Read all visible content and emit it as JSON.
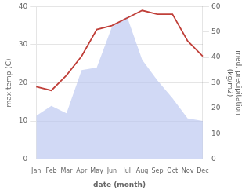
{
  "chart_data": {
    "type": "line",
    "categories": [
      "Jan",
      "Feb",
      "Mar",
      "Apr",
      "May",
      "Jun",
      "Jul",
      "Aug",
      "Sep",
      "Oct",
      "Nov",
      "Dec"
    ],
    "series": [
      {
        "type": "line",
        "color": "#c0403a",
        "values": [
          19,
          18,
          22,
          27,
          34,
          35,
          37,
          39,
          38,
          38,
          31,
          27
        ]
      },
      {
        "type": "area",
        "color": "#b8c4f0",
        "axis": "y2",
        "values": [
          17,
          21,
          18,
          35,
          36,
          52,
          56,
          39,
          31,
          24,
          16,
          15
        ]
      }
    ],
    "xlabel": "date (month)",
    "ylabel": "max temp (C)",
    "y2label": "med. precipitation\n(kg/m2)",
    "ylim": [
      0,
      40
    ],
    "yticks": [
      0,
      10,
      20,
      30,
      40
    ],
    "y2lim": [
      0,
      60
    ],
    "y2ticks": [
      0,
      10,
      20,
      30,
      40,
      50,
      60
    ],
    "grid": true
  }
}
